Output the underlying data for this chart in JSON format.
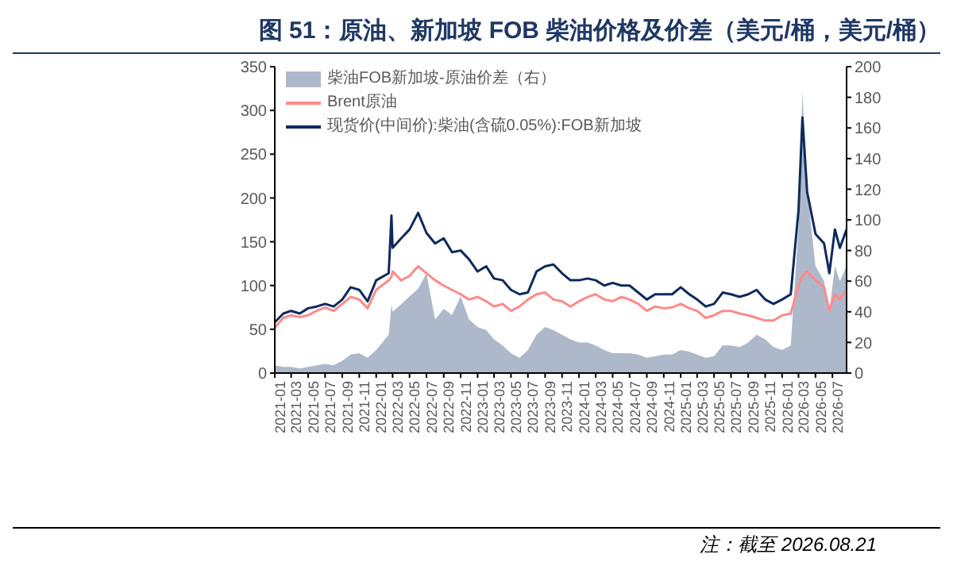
{
  "chart_data": {
    "type": "line",
    "title": "图 51：原油、新加坡 FOB 柴油价格及价差（美元/桶，美元/桶）",
    "annotations": [
      "注：截至 2026.08.21"
    ],
    "x": [
      "2021-01-01",
      "2021-02-01",
      "2021-03-01",
      "2021-04-01",
      "2021-05-01",
      "2021-06-01",
      "2021-07-01",
      "2021-08-01",
      "2021-09-01",
      "2021-10-01",
      "2021-11-01",
      "2021-12-01",
      "2022-01-01",
      "2022-02-15",
      "2022-02-25",
      "2022-03-01",
      "2022-04-01",
      "2022-05-01",
      "2022-06-01",
      "2022-07-01",
      "2022-08-01",
      "2022-09-01",
      "2022-10-01",
      "2022-11-01",
      "2022-12-01",
      "2023-01-01",
      "2023-02-01",
      "2023-03-01",
      "2023-04-01",
      "2023-05-01",
      "2023-06-01",
      "2023-07-01",
      "2023-08-01",
      "2023-09-01",
      "2023-10-01",
      "2023-11-01",
      "2023-12-01",
      "2024-01-01",
      "2024-02-01",
      "2024-03-01",
      "2024-04-01",
      "2024-05-01",
      "2024-06-01",
      "2024-07-01",
      "2024-08-01",
      "2024-09-01",
      "2024-10-01",
      "2024-11-01",
      "2024-12-01",
      "2025-01-01",
      "2025-02-01",
      "2025-03-01",
      "2025-04-01",
      "2025-05-01",
      "2025-06-01",
      "2025-07-01",
      "2025-08-01",
      "2025-09-01",
      "2025-10-01",
      "2025-11-01",
      "2025-12-01",
      "2026-01-01",
      "2026-02-01",
      "2026-03-01",
      "2026-03-15",
      "2026-04-01",
      "2026-05-01",
      "2026-06-01",
      "2026-06-20",
      "2026-07-10",
      "2026-07-28",
      "2026-08-21"
    ],
    "series": [
      {
        "name": "柴油FOB新加坡-原油价差（右）",
        "type": "area",
        "axis": "y2",
        "color": "#adb9ca",
        "values": [
          5,
          4,
          4,
          3,
          4,
          5,
          6,
          5,
          8,
          12,
          13,
          10,
          15,
          25,
          45,
          40,
          45,
          50,
          55,
          65,
          35,
          42,
          38,
          50,
          35,
          30,
          28,
          22,
          18,
          13,
          10,
          15,
          25,
          30,
          28,
          25,
          22,
          20,
          20,
          18,
          15,
          13,
          13,
          13,
          12,
          10,
          11,
          12,
          12,
          15,
          14,
          12,
          10,
          11,
          18,
          18,
          17,
          20,
          25,
          22,
          17,
          15,
          18,
          95,
          184,
          120,
          70,
          60,
          40,
          70,
          60,
          70
        ]
      },
      {
        "name": "Brent原油",
        "color": "#ff8a8a",
        "values": [
          52,
          63,
          66,
          64,
          66,
          71,
          75,
          71,
          79,
          87,
          84,
          74,
          95,
          106,
          110,
          116,
          106,
          111,
          122,
          114,
          106,
          100,
          95,
          90,
          84,
          87,
          82,
          76,
          79,
          71,
          76,
          84,
          90,
          92,
          84,
          82,
          76,
          82,
          87,
          90,
          84,
          82,
          87,
          84,
          79,
          71,
          76,
          74,
          75,
          79,
          74,
          71,
          63,
          66,
          71,
          71,
          68,
          66,
          63,
          60,
          60,
          66,
          68,
          100,
          111,
          116,
          106,
          98,
          71,
          90,
          84,
          95
        ]
      },
      {
        "name": "现货价(中间价):柴油(含硫0.05%):FOB新加坡",
        "color": "#0d2a5c",
        "values": [
          58,
          68,
          71,
          68,
          74,
          76,
          79,
          76,
          84,
          98,
          95,
          82,
          106,
          114,
          180,
          143,
          154,
          164,
          183,
          160,
          148,
          154,
          138,
          140,
          130,
          116,
          122,
          108,
          106,
          95,
          90,
          92,
          116,
          122,
          124,
          114,
          106,
          106,
          108,
          106,
          100,
          103,
          100,
          100,
          92,
          84,
          90,
          90,
          90,
          98,
          90,
          84,
          76,
          79,
          92,
          90,
          87,
          90,
          95,
          84,
          79,
          84,
          90,
          186,
          292,
          207,
          159,
          148,
          114,
          164,
          143,
          164
        ]
      }
    ],
    "xlim": [
      "2021-01-01",
      "2026-08-21"
    ],
    "xticks": [
      "2021-01",
      "2021-03",
      "2021-05",
      "2021-07",
      "2021-09",
      "2021-11",
      "2022-01",
      "2022-03",
      "2022-05",
      "2022-07",
      "2022-09",
      "2022-11",
      "2023-01",
      "2023-03",
      "2023-05",
      "2023-07",
      "2023-09",
      "2023-11",
      "2024-01",
      "2024-03",
      "2024-05",
      "2024-07",
      "2024-09",
      "2024-11",
      "2025-01",
      "2025-03",
      "2025-05",
      "2025-07",
      "2025-09",
      "2025-11",
      "2026-01",
      "2026-03",
      "2026-05",
      "2026-07"
    ],
    "ylim": [
      0,
      350
    ],
    "yticks": [
      0,
      50,
      100,
      150,
      200,
      250,
      300,
      350
    ],
    "y2lim": [
      0,
      200
    ],
    "y2ticks": [
      0,
      20,
      40,
      60,
      80,
      100,
      120,
      140,
      160,
      180,
      200
    ],
    "legend": "top left",
    "marker": "none",
    "line_style": "solid"
  }
}
